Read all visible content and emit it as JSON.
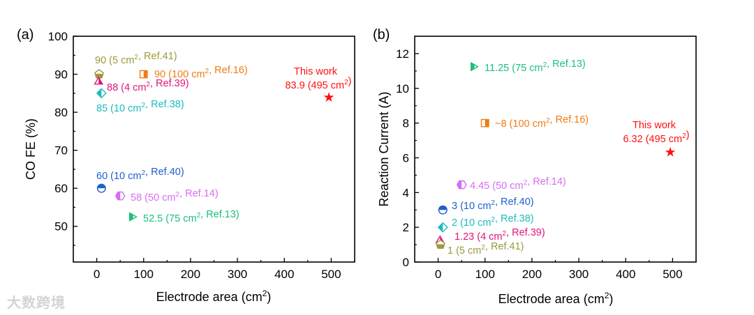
{
  "watermark": "大数跨境",
  "chart_data": [
    {
      "type": "scatter",
      "panel_label": "(a)",
      "xlabel": "Electrode area (cm²)",
      "ylabel": "CO FE (%)",
      "xlim": [
        -50,
        550
      ],
      "ylim": [
        40.6,
        100
      ],
      "xticks": [
        0,
        100,
        200,
        300,
        400,
        500
      ],
      "yticks": [
        50,
        60,
        70,
        80,
        90,
        100
      ],
      "grid": false,
      "points": [
        {
          "x": 5,
          "y": 90,
          "label": "90 (5 cm², Ref.41)",
          "color": "#9c9a3c",
          "marker": "pentagon"
        },
        {
          "x": 100,
          "y": 90,
          "label": "90 (100 cm², Ref.16)",
          "color": "#f07c14",
          "marker": "square"
        },
        {
          "x": 4,
          "y": 88,
          "label": "88 (4 cm², Ref.39)",
          "color": "#e0147c",
          "marker": "triangle-up"
        },
        {
          "x": 10,
          "y": 85,
          "label": "85 (10 cm², Ref.38)",
          "color": "#1cbcc0",
          "marker": "diamond"
        },
        {
          "x": 10,
          "y": 60,
          "label": "60 (10 cm², Ref.40)",
          "color": "#1f5fcf",
          "marker": "circle"
        },
        {
          "x": 50,
          "y": 58,
          "label": "58 (50 cm², Ref.14)",
          "color": "#d66ef0",
          "marker": "hexagon"
        },
        {
          "x": 75,
          "y": 52.5,
          "label": "52.5 (75 cm², Ref.13)",
          "color": "#1cbf7c",
          "marker": "triangle-right"
        },
        {
          "x": 495,
          "y": 83.9,
          "label": "83.9 (495 cm²)",
          "title": "This work",
          "color": "#ff1010",
          "marker": "star"
        }
      ]
    },
    {
      "type": "scatter",
      "panel_label": "(b)",
      "xlabel": "Electrode area (cm²)",
      "ylabel": "Reaction Current (A)",
      "xlim": [
        -50,
        550
      ],
      "ylim": [
        0,
        13
      ],
      "xticks": [
        0,
        100,
        200,
        300,
        400,
        500
      ],
      "yticks": [
        0,
        2,
        4,
        6,
        8,
        10,
        12
      ],
      "grid": false,
      "points": [
        {
          "x": 75,
          "y": 11.25,
          "label": "11.25 (75 cm², Ref.13)",
          "color": "#1cbf7c",
          "marker": "triangle-right"
        },
        {
          "x": 100,
          "y": 8,
          "label": "~8 (100 cm², Ref.16)",
          "color": "#f07c14",
          "marker": "square"
        },
        {
          "x": 495,
          "y": 6.32,
          "label": "6.32 (495 cm²)",
          "title": "This work",
          "color": "#ff1010",
          "marker": "star"
        },
        {
          "x": 50,
          "y": 4.45,
          "label": "4.45 (50 cm², Ref.14)",
          "color": "#d66ef0",
          "marker": "hexagon"
        },
        {
          "x": 10,
          "y": 3,
          "label": "3 (10 cm², Ref.40)",
          "color": "#1f5fcf",
          "marker": "circle"
        },
        {
          "x": 10,
          "y": 2,
          "label": "2 (10 cm², Ref.38)",
          "color": "#1cbcc0",
          "marker": "diamond"
        },
        {
          "x": 4,
          "y": 1.23,
          "label": "1.23 (4 cm², Ref.39)",
          "color": "#e0147c",
          "marker": "triangle-up"
        },
        {
          "x": 5,
          "y": 1,
          "label": "1 (5 cm², Ref.41)",
          "color": "#9c9a3c",
          "marker": "pentagon"
        }
      ]
    }
  ]
}
